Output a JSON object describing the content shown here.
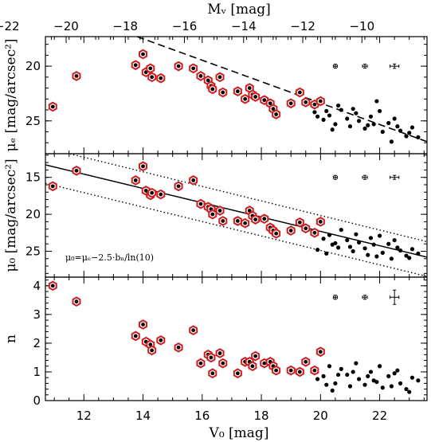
{
  "chart_data": {
    "type": "scatter",
    "x_label_bottom": "V₀ [mag]",
    "x_label_top": "Mᵥ [mag]",
    "x_range": [
      10.7,
      23.6
    ],
    "x_ticks": [
      12,
      14,
      16,
      18,
      20,
      22
    ],
    "top_ticks": [
      -22,
      -20,
      -18,
      -16,
      -14,
      -12,
      -10
    ],
    "top_offset": -31.4,
    "panels": [
      {
        "id": "mu_e",
        "ylabel": "μₑ [mag/arcsec²]",
        "ylim": [
          28.0,
          17.3
        ],
        "yticks": [
          20,
          25
        ],
        "red": [
          [
            10.95,
            23.7
          ],
          [
            11.75,
            20.9
          ],
          [
            13.75,
            19.9
          ],
          [
            14.0,
            18.9
          ],
          [
            14.1,
            20.55
          ],
          [
            14.25,
            20.2
          ],
          [
            14.3,
            21.0
          ],
          [
            14.6,
            21.1
          ],
          [
            15.2,
            20.0
          ],
          [
            15.7,
            20.2
          ],
          [
            15.95,
            20.9
          ],
          [
            16.2,
            21.3
          ],
          [
            16.3,
            21.8
          ],
          [
            16.35,
            22.1
          ],
          [
            16.6,
            21.0
          ],
          [
            16.7,
            22.4
          ],
          [
            17.2,
            22.3
          ],
          [
            17.45,
            23.0
          ],
          [
            17.6,
            22.0
          ],
          [
            17.7,
            22.6
          ],
          [
            17.8,
            22.8
          ],
          [
            18.1,
            23.1
          ],
          [
            18.3,
            23.4
          ],
          [
            18.4,
            23.9
          ],
          [
            18.5,
            24.4
          ],
          [
            19.0,
            23.4
          ],
          [
            19.3,
            22.4
          ],
          [
            19.5,
            23.3
          ],
          [
            19.8,
            23.5
          ],
          [
            20.0,
            23.2
          ]
        ],
        "black": [
          [
            19.8,
            24.2
          ],
          [
            20.1,
            24.9
          ],
          [
            20.3,
            24.5
          ],
          [
            20.5,
            25.3
          ],
          [
            20.7,
            24.0
          ],
          [
            20.9,
            24.8
          ],
          [
            21.0,
            25.5
          ],
          [
            21.2,
            24.3
          ],
          [
            21.3,
            25.0
          ],
          [
            21.5,
            25.7
          ],
          [
            21.7,
            24.6
          ],
          [
            21.8,
            25.3
          ],
          [
            22.0,
            24.1
          ],
          [
            22.1,
            26.0
          ],
          [
            22.3,
            25.2
          ],
          [
            22.5,
            24.8
          ],
          [
            22.7,
            25.9
          ],
          [
            22.9,
            26.4
          ],
          [
            23.1,
            25.6
          ],
          [
            23.3,
            26.5
          ],
          [
            20.6,
            23.6
          ],
          [
            21.1,
            23.9
          ],
          [
            21.9,
            23.2
          ],
          [
            22.4,
            26.9
          ],
          [
            19.9,
            24.6
          ],
          [
            20.2,
            24.1
          ],
          [
            20.4,
            25.8
          ],
          [
            21.6,
            25.4
          ],
          [
            22.6,
            25.5
          ],
          [
            23.0,
            26.1
          ]
        ],
        "lines": [
          {
            "style": "dashed",
            "x": [
              13.8,
              23.6
            ],
            "y": [
              17.3,
              26.9
            ]
          }
        ],
        "errorbars": [
          {
            "x": 20.5,
            "y": 20.0,
            "xerr": 0.05,
            "yerr": 0.05
          },
          {
            "x": 21.5,
            "y": 20.0,
            "xerr": 0.08,
            "yerr": 0.06
          },
          {
            "x": 22.5,
            "y": 20.0,
            "xerr": 0.15,
            "yerr": 0.2
          }
        ],
        "annotation": ""
      },
      {
        "id": "mu_0",
        "ylabel": "μ₀ [mag/arcsec²]",
        "ylim": [
          28.5,
          11.8
        ],
        "yticks": [
          15,
          20,
          25
        ],
        "red": [
          [
            10.95,
            16.2
          ],
          [
            11.75,
            14.1
          ],
          [
            13.75,
            15.4
          ],
          [
            14.0,
            13.5
          ],
          [
            14.1,
            16.8
          ],
          [
            14.25,
            17.4
          ],
          [
            14.3,
            17.1
          ],
          [
            14.6,
            17.3
          ],
          [
            15.2,
            16.2
          ],
          [
            15.7,
            15.4
          ],
          [
            15.95,
            18.6
          ],
          [
            16.2,
            19.0
          ],
          [
            16.3,
            19.3
          ],
          [
            16.35,
            20.0
          ],
          [
            16.6,
            19.5
          ],
          [
            16.7,
            20.9
          ],
          [
            17.2,
            20.9
          ],
          [
            17.45,
            21.2
          ],
          [
            17.6,
            19.5
          ],
          [
            17.7,
            20.2
          ],
          [
            17.8,
            20.7
          ],
          [
            18.1,
            20.6
          ],
          [
            18.3,
            21.8
          ],
          [
            18.4,
            22.2
          ],
          [
            18.5,
            22.6
          ],
          [
            19.0,
            22.2
          ],
          [
            19.3,
            21.1
          ],
          [
            19.5,
            21.9
          ],
          [
            19.8,
            22.5
          ],
          [
            20.0,
            21.0
          ]
        ],
        "black": [
          [
            19.8,
            22.4
          ],
          [
            20.1,
            23.3
          ],
          [
            20.3,
            22.8
          ],
          [
            20.5,
            23.9
          ],
          [
            20.7,
            22.1
          ],
          [
            20.9,
            23.5
          ],
          [
            21.0,
            24.4
          ],
          [
            21.2,
            22.7
          ],
          [
            21.3,
            23.8
          ],
          [
            21.5,
            24.6
          ],
          [
            21.7,
            23.2
          ],
          [
            21.8,
            24.1
          ],
          [
            22.0,
            22.9
          ],
          [
            22.1,
            25.2
          ],
          [
            22.3,
            24.0
          ],
          [
            22.5,
            23.5
          ],
          [
            22.7,
            24.9
          ],
          [
            22.9,
            25.6
          ],
          [
            23.1,
            24.7
          ],
          [
            23.3,
            25.3
          ],
          [
            20.6,
            24.5
          ],
          [
            21.1,
            25.0
          ],
          [
            21.9,
            25.7
          ],
          [
            22.4,
            26.0
          ],
          [
            19.9,
            24.8
          ],
          [
            20.2,
            25.3
          ],
          [
            20.4,
            24.1
          ],
          [
            21.6,
            25.5
          ],
          [
            22.6,
            24.5
          ],
          [
            23.0,
            25.9
          ]
        ],
        "lines": [
          {
            "style": "solid",
            "x": [
              10.7,
              23.6
            ],
            "y": [
              13.3,
              25.8
            ]
          },
          {
            "style": "dotted",
            "x": [
              10.7,
              23.6
            ],
            "y": [
              11.0,
              23.7
            ]
          },
          {
            "style": "dotted",
            "x": [
              10.7,
              23.6
            ],
            "y": [
              15.8,
              28.4
            ]
          }
        ],
        "errorbars": [
          {
            "x": 20.5,
            "y": 15.0,
            "xerr": 0.05,
            "yerr": 0.05
          },
          {
            "x": 21.5,
            "y": 15.0,
            "xerr": 0.08,
            "yerr": 0.08
          },
          {
            "x": 22.5,
            "y": 15.0,
            "xerr": 0.15,
            "yerr": 0.25
          }
        ],
        "annotation": "μ₀=μₑ−2.5·bₙ/ln(10)"
      },
      {
        "id": "n",
        "ylabel": "n",
        "ylim": [
          0,
          4.3
        ],
        "yticks": [
          0,
          1,
          2,
          3,
          4
        ],
        "red": [
          [
            10.95,
            4.0
          ],
          [
            11.75,
            3.45
          ],
          [
            13.75,
            2.25
          ],
          [
            14.0,
            2.65
          ],
          [
            14.1,
            2.05
          ],
          [
            14.25,
            1.95
          ],
          [
            14.3,
            1.75
          ],
          [
            14.6,
            2.1
          ],
          [
            15.2,
            1.85
          ],
          [
            15.7,
            2.45
          ],
          [
            15.95,
            1.3
          ],
          [
            16.2,
            1.6
          ],
          [
            16.3,
            1.5
          ],
          [
            16.35,
            0.95
          ],
          [
            16.6,
            1.65
          ],
          [
            16.7,
            1.3
          ],
          [
            17.2,
            0.95
          ],
          [
            17.45,
            1.35
          ],
          [
            17.6,
            1.35
          ],
          [
            17.7,
            1.2
          ],
          [
            17.8,
            1.55
          ],
          [
            18.1,
            1.3
          ],
          [
            18.3,
            1.35
          ],
          [
            18.4,
            1.2
          ],
          [
            18.5,
            1.05
          ],
          [
            19.0,
            1.05
          ],
          [
            19.3,
            1.0
          ],
          [
            19.5,
            1.35
          ],
          [
            19.8,
            1.05
          ],
          [
            20.0,
            1.7
          ]
        ],
        "black": [
          [
            19.8,
            1.0
          ],
          [
            20.1,
            0.85
          ],
          [
            20.3,
            1.2
          ],
          [
            20.5,
            0.6
          ],
          [
            20.7,
            1.1
          ],
          [
            20.9,
            0.9
          ],
          [
            21.0,
            0.5
          ],
          [
            21.2,
            1.3
          ],
          [
            21.3,
            0.75
          ],
          [
            21.5,
            0.55
          ],
          [
            21.7,
            1.0
          ],
          [
            21.8,
            0.7
          ],
          [
            22.0,
            1.2
          ],
          [
            22.1,
            0.45
          ],
          [
            22.3,
            0.85
          ],
          [
            22.5,
            0.95
          ],
          [
            22.7,
            0.6
          ],
          [
            22.9,
            0.4
          ],
          [
            23.1,
            0.8
          ],
          [
            23.3,
            0.7
          ],
          [
            20.6,
            0.9
          ],
          [
            21.1,
            1.0
          ],
          [
            21.9,
            0.65
          ],
          [
            22.4,
            0.5
          ],
          [
            19.9,
            0.75
          ],
          [
            20.2,
            0.55
          ],
          [
            20.4,
            0.35
          ],
          [
            21.6,
            0.85
          ],
          [
            22.6,
            1.05
          ],
          [
            23.0,
            0.3
          ]
        ],
        "lines": [],
        "errorbars": [
          {
            "x": 20.5,
            "y": 3.6,
            "xerr": 0.05,
            "yerr": 0.03
          },
          {
            "x": 21.5,
            "y": 3.6,
            "xerr": 0.08,
            "yerr": 0.05
          },
          {
            "x": 22.5,
            "y": 3.6,
            "xerr": 0.15,
            "yerr": 0.25
          }
        ],
        "annotation": ""
      }
    ]
  }
}
